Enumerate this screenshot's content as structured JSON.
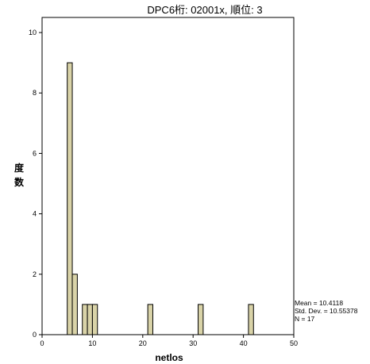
{
  "chart_data": {
    "type": "bar",
    "title": "DPC6桁: 02001x, 順位: 3",
    "xlabel": "netlos",
    "ylabel": "度数",
    "xlim": [
      0,
      50
    ],
    "ylim": [
      0,
      10.5
    ],
    "xticks": [
      0,
      10,
      20,
      30,
      40,
      50
    ],
    "yticks": [
      0,
      2,
      4,
      6,
      8,
      10
    ],
    "bin_width": 1,
    "bins": [
      {
        "x_start": 5,
        "x_end": 6,
        "value": 9
      },
      {
        "x_start": 6,
        "x_end": 7,
        "value": 2
      },
      {
        "x_start": 8,
        "x_end": 9,
        "value": 1
      },
      {
        "x_start": 9,
        "x_end": 10,
        "value": 1
      },
      {
        "x_start": 10,
        "x_end": 11,
        "value": 1
      },
      {
        "x_start": 21,
        "x_end": 22,
        "value": 1
      },
      {
        "x_start": 31,
        "x_end": 32,
        "value": 1
      },
      {
        "x_start": 41,
        "x_end": 42,
        "value": 1
      }
    ],
    "bar_color": "#d9d3a8",
    "bar_stroke": "#000000",
    "stats": {
      "mean": "Mean = 10.4118",
      "std": "Std. Dev. = 10.55378",
      "n": "N = 17"
    }
  }
}
